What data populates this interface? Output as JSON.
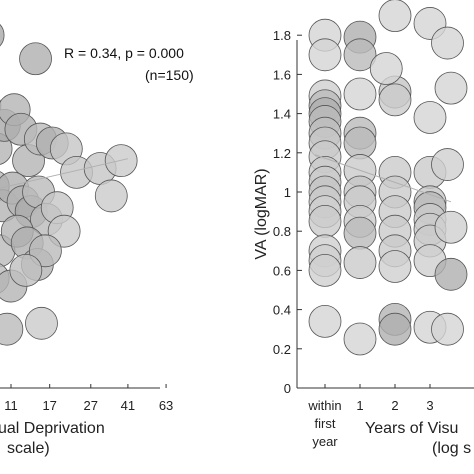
{
  "chart_data": [
    {
      "type": "scatter",
      "title": "",
      "xlabel_lines": [
        "ual Deprivation",
        "scale)"
      ],
      "ylabel": "",
      "x_ticks": [
        "11",
        "17",
        "27",
        "41",
        "63"
      ],
      "x_tick_values": [
        11,
        17,
        27,
        41,
        63
      ],
      "xscale": "log",
      "xlim": [
        5.5,
        80
      ],
      "ylim": [
        0,
        1.9
      ],
      "annotation": "R = 0.34, p = 0.000",
      "annotation_n": "(n=150)",
      "point_color": "#8c8c8c",
      "fit_line": {
        "x": [
          5.5,
          41
        ],
        "y": [
          0.96,
          1.17
        ]
      },
      "points": [
        {
          "x": 6.2,
          "y": 1.78,
          "shade": 0.55
        },
        {
          "x": 7.0,
          "y": 1.7,
          "shade": 0.5
        },
        {
          "x": 8.5,
          "y": 1.8,
          "shade": 0.6
        },
        {
          "x": 14.5,
          "y": 1.68,
          "shade": 0.55
        },
        {
          "x": 6.3,
          "y": 1.42,
          "shade": 0.5
        },
        {
          "x": 7.3,
          "y": 1.36,
          "shade": 0.45
        },
        {
          "x": 8.2,
          "y": 1.44,
          "shade": 0.6
        },
        {
          "x": 9.3,
          "y": 1.22,
          "shade": 0.5
        },
        {
          "x": 10.2,
          "y": 1.34,
          "shade": 0.6
        },
        {
          "x": 11.4,
          "y": 1.42,
          "shade": 0.5
        },
        {
          "x": 12.3,
          "y": 1.32,
          "shade": 0.55
        },
        {
          "x": 13.4,
          "y": 1.16,
          "shade": 0.5
        },
        {
          "x": 15.3,
          "y": 1.27,
          "shade": 0.45
        },
        {
          "x": 17.5,
          "y": 1.25,
          "shade": 0.55
        },
        {
          "x": 20.5,
          "y": 1.22,
          "shade": 0.35
        },
        {
          "x": 23.0,
          "y": 1.1,
          "shade": 0.35
        },
        {
          "x": 30.0,
          "y": 1.12,
          "shade": 0.35
        },
        {
          "x": 38.0,
          "y": 1.16,
          "shade": 0.3
        },
        {
          "x": 34.0,
          "y": 0.98,
          "shade": 0.3
        },
        {
          "x": 6.2,
          "y": 1.05,
          "shade": 0.55
        },
        {
          "x": 7.5,
          "y": 0.98,
          "shade": 0.5
        },
        {
          "x": 9.0,
          "y": 1.03,
          "shade": 0.45
        },
        {
          "x": 10.0,
          "y": 0.93,
          "shade": 0.5
        },
        {
          "x": 11.2,
          "y": 1.02,
          "shade": 0.55
        },
        {
          "x": 12.6,
          "y": 0.95,
          "shade": 0.5
        },
        {
          "x": 13.8,
          "y": 0.9,
          "shade": 0.6
        },
        {
          "x": 15.0,
          "y": 1.0,
          "shade": 0.45
        },
        {
          "x": 16.4,
          "y": 0.86,
          "shade": 0.45
        },
        {
          "x": 18.5,
          "y": 0.92,
          "shade": 0.35
        },
        {
          "x": 20.0,
          "y": 0.8,
          "shade": 0.3
        },
        {
          "x": 6.5,
          "y": 0.77,
          "shade": 0.55
        },
        {
          "x": 8.0,
          "y": 0.72,
          "shade": 0.5
        },
        {
          "x": 9.6,
          "y": 0.7,
          "shade": 0.45
        },
        {
          "x": 11.8,
          "y": 0.8,
          "shade": 0.5
        },
        {
          "x": 13.2,
          "y": 0.74,
          "shade": 0.55
        },
        {
          "x": 14.8,
          "y": 0.63,
          "shade": 0.5
        },
        {
          "x": 16.2,
          "y": 0.7,
          "shade": 0.45
        },
        {
          "x": 7.0,
          "y": 0.55,
          "shade": 0.5
        },
        {
          "x": 9.0,
          "y": 0.56,
          "shade": 0.45
        },
        {
          "x": 11.0,
          "y": 0.52,
          "shade": 0.5
        },
        {
          "x": 13.0,
          "y": 0.6,
          "shade": 0.4
        },
        {
          "x": 6.8,
          "y": 0.33,
          "shade": 0.5
        },
        {
          "x": 10.5,
          "y": 0.3,
          "shade": 0.45
        },
        {
          "x": 15.5,
          "y": 0.33,
          "shade": 0.3
        },
        {
          "x": 6.2,
          "y": 1.88,
          "shade": 0.3
        }
      ]
    },
    {
      "type": "scatter",
      "title": "",
      "ylabel": "VA (logMAR)",
      "xlabel_lines": [
        "Years of Visu",
        "(log s"
      ],
      "x_category_labels": [
        [
          "within",
          "first",
          "year"
        ],
        [
          "1"
        ],
        [
          "2"
        ],
        [
          "3"
        ]
      ],
      "y_ticks": [
        0,
        0.2,
        0.4,
        0.6,
        0.8,
        1,
        1.2,
        1.4,
        1.6,
        1.8
      ],
      "ylim": [
        0,
        1.9
      ],
      "point_color": "#8c8c8c",
      "fit_line": {
        "x": [
          0,
          3.6
        ],
        "y": [
          1.19,
          0.95
        ]
      },
      "points": [
        {
          "x": 0,
          "y": 1.8,
          "shade": 0.2
        },
        {
          "x": 0,
          "y": 1.7,
          "shade": 0.2
        },
        {
          "x": 0,
          "y": 1.49,
          "shade": 0.25
        },
        {
          "x": 0,
          "y": 1.44,
          "shade": 0.45
        },
        {
          "x": 0,
          "y": 1.4,
          "shade": 0.55
        },
        {
          "x": 0,
          "y": 1.36,
          "shade": 0.45
        },
        {
          "x": 0,
          "y": 1.3,
          "shade": 0.4
        },
        {
          "x": 0,
          "y": 1.25,
          "shade": 0.35
        },
        {
          "x": 0,
          "y": 1.18,
          "shade": 0.3
        },
        {
          "x": 0,
          "y": 1.1,
          "shade": 0.3
        },
        {
          "x": 0,
          "y": 1.05,
          "shade": 0.3
        },
        {
          "x": 0,
          "y": 1.0,
          "shade": 0.35
        },
        {
          "x": 0,
          "y": 0.95,
          "shade": 0.3
        },
        {
          "x": 0,
          "y": 0.9,
          "shade": 0.25
        },
        {
          "x": 0,
          "y": 0.85,
          "shade": 0.3
        },
        {
          "x": 0,
          "y": 0.7,
          "shade": 0.25
        },
        {
          "x": 0,
          "y": 0.65,
          "shade": 0.25
        },
        {
          "x": 0,
          "y": 0.6,
          "shade": 0.25
        },
        {
          "x": 0,
          "y": 0.34,
          "shade": 0.2
        },
        {
          "x": 1,
          "y": 1.79,
          "shade": 0.55
        },
        {
          "x": 1,
          "y": 1.7,
          "shade": 0.45
        },
        {
          "x": 1,
          "y": 1.5,
          "shade": 0.2
        },
        {
          "x": 1,
          "y": 1.3,
          "shade": 0.45
        },
        {
          "x": 1,
          "y": 1.25,
          "shade": 0.45
        },
        {
          "x": 1,
          "y": 1.11,
          "shade": 0.3
        },
        {
          "x": 1,
          "y": 1.0,
          "shade": 0.35
        },
        {
          "x": 1,
          "y": 0.95,
          "shade": 0.3
        },
        {
          "x": 1,
          "y": 0.85,
          "shade": 0.3
        },
        {
          "x": 1,
          "y": 0.79,
          "shade": 0.45
        },
        {
          "x": 1,
          "y": 0.64,
          "shade": 0.3
        },
        {
          "x": 1,
          "y": 0.25,
          "shade": 0.2
        },
        {
          "x": 2,
          "y": 1.9,
          "shade": 0.2
        },
        {
          "x": 2,
          "y": 1.51,
          "shade": 0.35
        },
        {
          "x": 2,
          "y": 1.47,
          "shade": 0.3
        },
        {
          "x": 2,
          "y": 1.1,
          "shade": 0.3
        },
        {
          "x": 2,
          "y": 1.0,
          "shade": 0.3
        },
        {
          "x": 2,
          "y": 0.9,
          "shade": 0.3
        },
        {
          "x": 2,
          "y": 0.8,
          "shade": 0.3
        },
        {
          "x": 2,
          "y": 0.7,
          "shade": 0.3
        },
        {
          "x": 2,
          "y": 0.62,
          "shade": 0.25
        },
        {
          "x": 2,
          "y": 0.35,
          "shade": 0.5
        },
        {
          "x": 2,
          "y": 0.3,
          "shade": 0.55
        },
        {
          "x": 1.75,
          "y": 1.63,
          "shade": 0.2
        },
        {
          "x": 3,
          "y": 1.86,
          "shade": 0.2
        },
        {
          "x": 3,
          "y": 1.38,
          "shade": 0.2
        },
        {
          "x": 3,
          "y": 1.1,
          "shade": 0.3
        },
        {
          "x": 3,
          "y": 0.95,
          "shade": 0.35
        },
        {
          "x": 3,
          "y": 0.92,
          "shade": 0.45
        },
        {
          "x": 3,
          "y": 0.86,
          "shade": 0.3
        },
        {
          "x": 3,
          "y": 0.81,
          "shade": 0.3
        },
        {
          "x": 3,
          "y": 0.75,
          "shade": 0.3
        },
        {
          "x": 3,
          "y": 0.65,
          "shade": 0.25
        },
        {
          "x": 3,
          "y": 0.31,
          "shade": 0.2
        },
        {
          "x": 3.5,
          "y": 1.76,
          "shade": 0.2
        },
        {
          "x": 3.6,
          "y": 1.53,
          "shade": 0.2
        },
        {
          "x": 3.5,
          "y": 1.14,
          "shade": 0.25
        },
        {
          "x": 3.6,
          "y": 0.82,
          "shade": 0.25
        },
        {
          "x": 3.6,
          "y": 0.58,
          "shade": 0.55
        },
        {
          "x": 3.5,
          "y": 0.3,
          "shade": 0.2
        }
      ]
    }
  ]
}
